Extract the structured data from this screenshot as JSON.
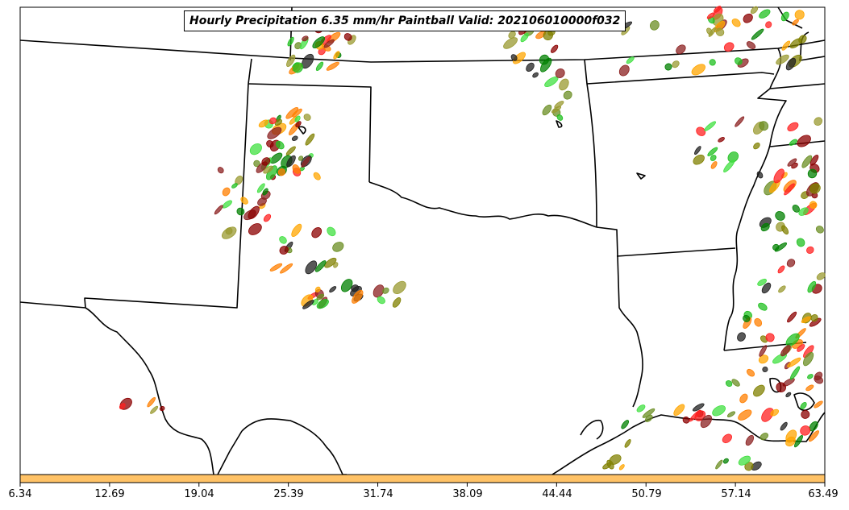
{
  "map": {
    "title": "Hourly Precipitation 6.35 mm/hr Paintball Valid: 202106010000f032",
    "colorbar_color": "#ffc266",
    "colorbar_ticks": [
      "6.34",
      "12.69",
      "19.04",
      "25.39",
      "31.74",
      "38.09",
      "44.44",
      "50.79",
      "57.14",
      "63.49"
    ],
    "member_colors": [
      "#8b0000",
      "#ff2020",
      "#ff7f00",
      "#ffa500",
      "#808000",
      "#9a9a30",
      "#008000",
      "#20c020",
      "#40e040",
      "#8b2020",
      "#202020",
      "#6b8e23"
    ]
  }
}
